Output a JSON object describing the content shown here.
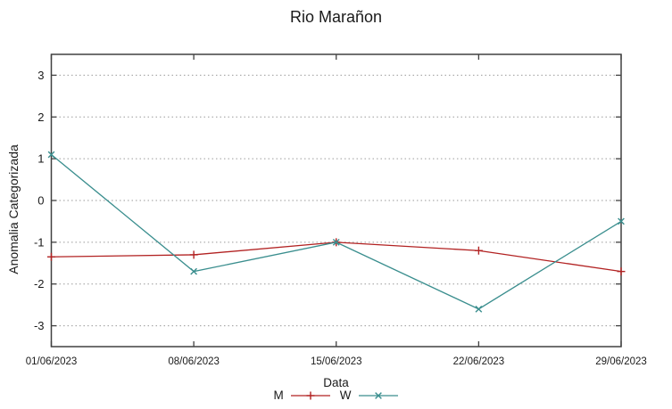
{
  "title": "Rio Marañon",
  "chart_data": {
    "type": "line",
    "title": "Rio Marañon",
    "xlabel": "Data",
    "ylabel": "Anomalia Categorizada",
    "categories": [
      "01/06/2023",
      "08/06/2023",
      "15/06/2023",
      "22/06/2023",
      "29/06/2023"
    ],
    "series": [
      {
        "name": "M",
        "color": "#b22222",
        "marker": "plus",
        "values": [
          -1.35,
          -1.3,
          -1.0,
          -1.2,
          -1.7
        ]
      },
      {
        "name": "W",
        "color": "#3a8e8e",
        "marker": "x",
        "values": [
          1.1,
          -1.7,
          -1.0,
          -2.6,
          -0.5
        ]
      }
    ],
    "ylim": [
      -3.5,
      3.5
    ],
    "yticks": [
      3,
      2,
      1,
      0,
      -1,
      -2,
      -3
    ],
    "grid": {
      "horizontal": true,
      "style": "dotted"
    },
    "legend_position": "bottom-center",
    "tick_style": "inward-mirrored"
  },
  "colors": {
    "background": "#ffffff",
    "axis": "#404040",
    "gridline": "#9a9a9a",
    "text": "#1a1a1a",
    "series_m": "#b22222",
    "series_w": "#3a8e8e"
  }
}
